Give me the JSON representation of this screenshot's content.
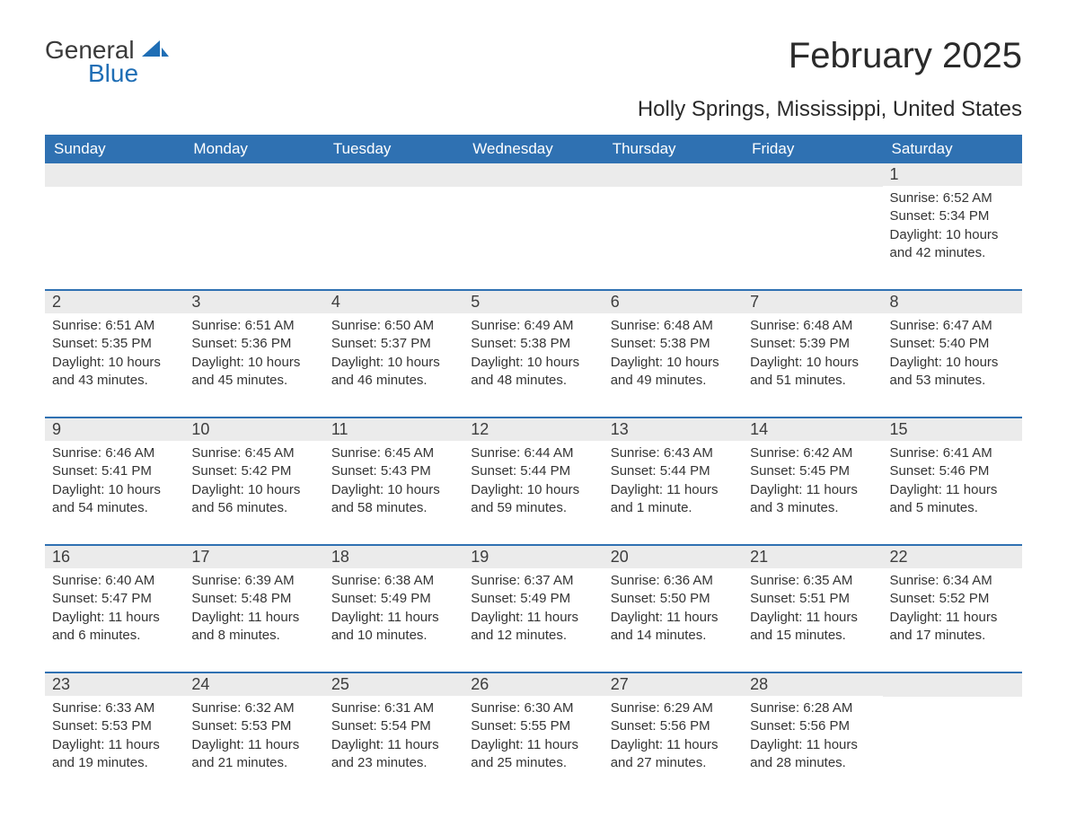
{
  "logo": {
    "word1": "General",
    "word2": "Blue"
  },
  "title": "February 2025",
  "location": "Holly Springs, Mississippi, United States",
  "colors": {
    "header_bg": "#2f71b2",
    "header_text": "#ffffff",
    "daynum_bg": "#ebebeb",
    "row_border": "#2f71b2",
    "logo_blue": "#1f6eb5",
    "text": "#333333"
  },
  "weekdays": [
    "Sunday",
    "Monday",
    "Tuesday",
    "Wednesday",
    "Thursday",
    "Friday",
    "Saturday"
  ],
  "weeks": [
    [
      null,
      null,
      null,
      null,
      null,
      null,
      {
        "n": "1",
        "sr": "Sunrise: 6:52 AM",
        "ss": "Sunset: 5:34 PM",
        "dl": "Daylight: 10 hours and 42 minutes."
      }
    ],
    [
      {
        "n": "2",
        "sr": "Sunrise: 6:51 AM",
        "ss": "Sunset: 5:35 PM",
        "dl": "Daylight: 10 hours and 43 minutes."
      },
      {
        "n": "3",
        "sr": "Sunrise: 6:51 AM",
        "ss": "Sunset: 5:36 PM",
        "dl": "Daylight: 10 hours and 45 minutes."
      },
      {
        "n": "4",
        "sr": "Sunrise: 6:50 AM",
        "ss": "Sunset: 5:37 PM",
        "dl": "Daylight: 10 hours and 46 minutes."
      },
      {
        "n": "5",
        "sr": "Sunrise: 6:49 AM",
        "ss": "Sunset: 5:38 PM",
        "dl": "Daylight: 10 hours and 48 minutes."
      },
      {
        "n": "6",
        "sr": "Sunrise: 6:48 AM",
        "ss": "Sunset: 5:38 PM",
        "dl": "Daylight: 10 hours and 49 minutes."
      },
      {
        "n": "7",
        "sr": "Sunrise: 6:48 AM",
        "ss": "Sunset: 5:39 PM",
        "dl": "Daylight: 10 hours and 51 minutes."
      },
      {
        "n": "8",
        "sr": "Sunrise: 6:47 AM",
        "ss": "Sunset: 5:40 PM",
        "dl": "Daylight: 10 hours and 53 minutes."
      }
    ],
    [
      {
        "n": "9",
        "sr": "Sunrise: 6:46 AM",
        "ss": "Sunset: 5:41 PM",
        "dl": "Daylight: 10 hours and 54 minutes."
      },
      {
        "n": "10",
        "sr": "Sunrise: 6:45 AM",
        "ss": "Sunset: 5:42 PM",
        "dl": "Daylight: 10 hours and 56 minutes."
      },
      {
        "n": "11",
        "sr": "Sunrise: 6:45 AM",
        "ss": "Sunset: 5:43 PM",
        "dl": "Daylight: 10 hours and 58 minutes."
      },
      {
        "n": "12",
        "sr": "Sunrise: 6:44 AM",
        "ss": "Sunset: 5:44 PM",
        "dl": "Daylight: 10 hours and 59 minutes."
      },
      {
        "n": "13",
        "sr": "Sunrise: 6:43 AM",
        "ss": "Sunset: 5:44 PM",
        "dl": "Daylight: 11 hours and 1 minute."
      },
      {
        "n": "14",
        "sr": "Sunrise: 6:42 AM",
        "ss": "Sunset: 5:45 PM",
        "dl": "Daylight: 11 hours and 3 minutes."
      },
      {
        "n": "15",
        "sr": "Sunrise: 6:41 AM",
        "ss": "Sunset: 5:46 PM",
        "dl": "Daylight: 11 hours and 5 minutes."
      }
    ],
    [
      {
        "n": "16",
        "sr": "Sunrise: 6:40 AM",
        "ss": "Sunset: 5:47 PM",
        "dl": "Daylight: 11 hours and 6 minutes."
      },
      {
        "n": "17",
        "sr": "Sunrise: 6:39 AM",
        "ss": "Sunset: 5:48 PM",
        "dl": "Daylight: 11 hours and 8 minutes."
      },
      {
        "n": "18",
        "sr": "Sunrise: 6:38 AM",
        "ss": "Sunset: 5:49 PM",
        "dl": "Daylight: 11 hours and 10 minutes."
      },
      {
        "n": "19",
        "sr": "Sunrise: 6:37 AM",
        "ss": "Sunset: 5:49 PM",
        "dl": "Daylight: 11 hours and 12 minutes."
      },
      {
        "n": "20",
        "sr": "Sunrise: 6:36 AM",
        "ss": "Sunset: 5:50 PM",
        "dl": "Daylight: 11 hours and 14 minutes."
      },
      {
        "n": "21",
        "sr": "Sunrise: 6:35 AM",
        "ss": "Sunset: 5:51 PM",
        "dl": "Daylight: 11 hours and 15 minutes."
      },
      {
        "n": "22",
        "sr": "Sunrise: 6:34 AM",
        "ss": "Sunset: 5:52 PM",
        "dl": "Daylight: 11 hours and 17 minutes."
      }
    ],
    [
      {
        "n": "23",
        "sr": "Sunrise: 6:33 AM",
        "ss": "Sunset: 5:53 PM",
        "dl": "Daylight: 11 hours and 19 minutes."
      },
      {
        "n": "24",
        "sr": "Sunrise: 6:32 AM",
        "ss": "Sunset: 5:53 PM",
        "dl": "Daylight: 11 hours and 21 minutes."
      },
      {
        "n": "25",
        "sr": "Sunrise: 6:31 AM",
        "ss": "Sunset: 5:54 PM",
        "dl": "Daylight: 11 hours and 23 minutes."
      },
      {
        "n": "26",
        "sr": "Sunrise: 6:30 AM",
        "ss": "Sunset: 5:55 PM",
        "dl": "Daylight: 11 hours and 25 minutes."
      },
      {
        "n": "27",
        "sr": "Sunrise: 6:29 AM",
        "ss": "Sunset: 5:56 PM",
        "dl": "Daylight: 11 hours and 27 minutes."
      },
      {
        "n": "28",
        "sr": "Sunrise: 6:28 AM",
        "ss": "Sunset: 5:56 PM",
        "dl": "Daylight: 11 hours and 28 minutes."
      },
      null
    ]
  ]
}
